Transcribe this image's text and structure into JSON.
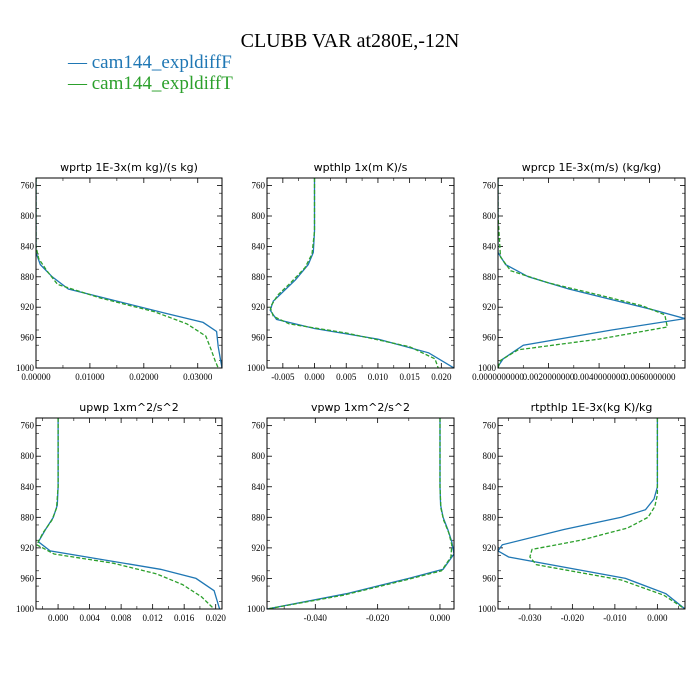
{
  "title": "CLUBB VAR at280E,-12N",
  "legend": [
    {
      "label": "— cam144_expldiffF",
      "color": "#1f77b4"
    },
    {
      "label": "— cam144_expldiffT",
      "color": "#2ca02c"
    }
  ],
  "chart_data": [
    {
      "type": "line",
      "title": "wprtp  1E-3x(m kg)/(s kg)",
      "xlim": [
        0,
        0.0345
      ],
      "ylim": [
        1000,
        750
      ],
      "yticks": [
        760,
        800,
        840,
        880,
        920,
        960,
        1000
      ],
      "ytick_labels": [
        "760",
        "800",
        "840",
        "880",
        "920",
        "960",
        "1000"
      ],
      "xticks": [
        0,
        0.01,
        0.02,
        0.03
      ],
      "xtick_labels": [
        "0.00000",
        "0.01000",
        "0.02000",
        "0.03000"
      ],
      "series": [
        {
          "name": "cam144_expldiffF",
          "style": "solid",
          "x": [
            0,
            0,
            0,
            0,
            0.0008,
            0.003,
            0.006,
            0.015,
            0.024,
            0.031,
            0.0335,
            0.0338,
            0.0345
          ],
          "y": [
            750,
            800,
            830,
            848,
            864,
            880,
            896,
            912,
            928,
            940,
            952,
            972,
            1000
          ]
        },
        {
          "name": "cam144_expldiffT",
          "style": "dashed",
          "x": [
            0,
            0,
            0,
            0.0005,
            0.002,
            0.004,
            0.012,
            0.022,
            0.028,
            0.0315,
            0.0325,
            0.0332,
            0.0338
          ],
          "y": [
            750,
            800,
            840,
            856,
            872,
            890,
            908,
            926,
            942,
            958,
            976,
            990,
            1000
          ]
        }
      ]
    },
    {
      "type": "line",
      "title": "wpthlp  1x(m K)/s",
      "xlim": [
        -0.0075,
        0.022
      ],
      "ylim": [
        1000,
        750
      ],
      "yticks": [
        760,
        800,
        840,
        880,
        920,
        960,
        1000
      ],
      "ytick_labels": [
        "760",
        "800",
        "840",
        "880",
        "920",
        "960",
        "1000"
      ],
      "xticks": [
        -0.005,
        0,
        0.005,
        0.01,
        0.015,
        0.02
      ],
      "xtick_labels": [
        "-0.005",
        "0.000",
        "0.005",
        "0.010",
        "0.015",
        "0.020"
      ],
      "series": [
        {
          "name": "cam144_expldiffF",
          "style": "solid",
          "x": [
            0,
            0,
            -0.0002,
            -0.001,
            -0.003,
            -0.005,
            -0.0065,
            -0.007,
            -0.006,
            0,
            0.01,
            0.018,
            0.022
          ],
          "y": [
            750,
            820,
            848,
            864,
            884,
            900,
            912,
            924,
            936,
            948,
            962,
            980,
            1000
          ]
        },
        {
          "name": "cam144_expldiffT",
          "style": "dashed",
          "x": [
            0,
            0,
            -0.0004,
            -0.0015,
            -0.0038,
            -0.0058,
            -0.007,
            -0.0065,
            -0.004,
            0.005,
            0.015,
            0.019,
            0.0195
          ],
          "y": [
            750,
            820,
            850,
            868,
            888,
            904,
            920,
            932,
            942,
            954,
            972,
            988,
            1000
          ]
        }
      ]
    },
    {
      "type": "line",
      "title": "wprcp  1E-3x(m/s) (kg/kg)",
      "xlim": [
        0,
        0.0074
      ],
      "ylim": [
        1000,
        750
      ],
      "yticks": [
        760,
        800,
        840,
        880,
        920,
        960,
        1000
      ],
      "ytick_labels": [
        "760",
        "800",
        "840",
        "880",
        "920",
        "960",
        "1000"
      ],
      "xticks": [
        0,
        0.002,
        0.004,
        0.006
      ],
      "xtick_labels": [
        "0.0000000000",
        "0.0020000000",
        "0.0040000000",
        "0.0060000000"
      ],
      "series": [
        {
          "name": "cam144_expldiffF",
          "style": "solid",
          "x": [
            0,
            0,
            0,
            0.0003,
            0.0012,
            0.0028,
            0.0045,
            0.0062,
            0.0074,
            0.0045,
            0.001,
            0.0002,
            0
          ],
          "y": [
            750,
            800,
            848,
            864,
            880,
            896,
            910,
            924,
            935,
            950,
            970,
            988,
            998
          ]
        },
        {
          "name": "cam144_expldiffT",
          "style": "dashed",
          "x": [
            0,
            0,
            0.0001,
            0.0005,
            0.002,
            0.004,
            0.0057,
            0.0066,
            0.0067,
            0.004,
            0.0008,
            0.0001,
            0
          ],
          "y": [
            750,
            800,
            854,
            872,
            888,
            904,
            918,
            930,
            946,
            962,
            976,
            990,
            1000
          ]
        }
      ]
    },
    {
      "type": "line",
      "title": "upwp  1xm^2/s^2",
      "xlim": [
        -0.0028,
        0.0208
      ],
      "ylim": [
        1000,
        750
      ],
      "yticks": [
        760,
        800,
        840,
        880,
        920,
        960,
        1000
      ],
      "ytick_labels": [
        "760",
        "800",
        "840",
        "880",
        "920",
        "960",
        "1000"
      ],
      "xticks": [
        0,
        0.004,
        0.008,
        0.012,
        0.016,
        0.02
      ],
      "xtick_labels": [
        "0.000",
        "0.004",
        "0.008",
        "0.012",
        "0.016",
        "0.020"
      ],
      "series": [
        {
          "name": "cam144_expldiffF",
          "style": "solid",
          "x": [
            0,
            0,
            -0.0001,
            -0.0006,
            -0.0016,
            -0.0025,
            -0.001,
            0.006,
            0.013,
            0.0175,
            0.0198,
            0.0205
          ],
          "y": [
            750,
            840,
            864,
            880,
            896,
            912,
            924,
            936,
            948,
            960,
            976,
            1000
          ]
        },
        {
          "name": "cam144_expldiffT",
          "style": "dashed",
          "x": [
            0,
            0,
            -0.0002,
            -0.0008,
            -0.0019,
            -0.0027,
            -0.0005,
            0.007,
            0.0125,
            0.0158,
            0.0182,
            0.0198
          ],
          "y": [
            750,
            840,
            868,
            884,
            900,
            916,
            928,
            940,
            954,
            968,
            984,
            1000
          ]
        }
      ]
    },
    {
      "type": "line",
      "title": "vpwp  1xm^2/s^2",
      "xlim": [
        -0.0555,
        0.0045
      ],
      "ylim": [
        1000,
        750
      ],
      "yticks": [
        760,
        800,
        840,
        880,
        920,
        960,
        1000
      ],
      "ytick_labels": [
        "760",
        "800",
        "840",
        "880",
        "920",
        "960",
        "1000"
      ],
      "xticks": [
        -0.04,
        -0.02,
        0
      ],
      "xtick_labels": [
        "-0.040",
        "-0.020",
        "0.000"
      ],
      "series": [
        {
          "name": "cam144_expldiffF",
          "style": "solid",
          "x": [
            0,
            0,
            0.0002,
            0.001,
            0.0025,
            0.0038,
            0.0045,
            0.001,
            -0.01,
            -0.03,
            -0.0555
          ],
          "y": [
            750,
            840,
            864,
            880,
            896,
            912,
            928,
            948,
            960,
            980,
            1000
          ]
        },
        {
          "name": "cam144_expldiffT",
          "style": "dashed",
          "x": [
            0,
            0,
            0.0003,
            0.0012,
            0.0028,
            0.0038,
            0.0035,
            0.0005,
            -0.011,
            -0.031,
            -0.0555
          ],
          "y": [
            750,
            840,
            868,
            884,
            900,
            916,
            932,
            950,
            962,
            982,
            1000
          ]
        }
      ]
    },
    {
      "type": "line",
      "title": "rtpthlp  1E-3x(kg K)/kg",
      "xlim": [
        -0.0375,
        0.0065
      ],
      "ylim": [
        1000,
        750
      ],
      "yticks": [
        760,
        800,
        840,
        880,
        920,
        960,
        1000
      ],
      "ytick_labels": [
        "760",
        "800",
        "840",
        "880",
        "920",
        "960",
        "1000"
      ],
      "xticks": [
        -0.03,
        -0.02,
        -0.01,
        0
      ],
      "xtick_labels": [
        "-0.030",
        "-0.020",
        "-0.010",
        "0.000"
      ],
      "series": [
        {
          "name": "cam144_expldiffF",
          "style": "solid",
          "x": [
            0,
            0,
            -0.0008,
            -0.0028,
            -0.0085,
            -0.022,
            -0.0365,
            -0.0375,
            -0.035,
            -0.0075,
            0.002,
            0.0065
          ],
          "y": [
            750,
            840,
            856,
            870,
            880,
            896,
            916,
            924,
            932,
            960,
            980,
            1000
          ]
        },
        {
          "name": "cam144_expldiffT",
          "style": "dashed",
          "x": [
            0,
            0,
            -0.0006,
            -0.0022,
            -0.007,
            -0.018,
            -0.0295,
            -0.03,
            -0.0285,
            -0.0085,
            0.0015,
            0.0065
          ],
          "y": [
            750,
            850,
            866,
            880,
            894,
            910,
            922,
            932,
            942,
            962,
            982,
            1000
          ]
        }
      ]
    }
  ]
}
